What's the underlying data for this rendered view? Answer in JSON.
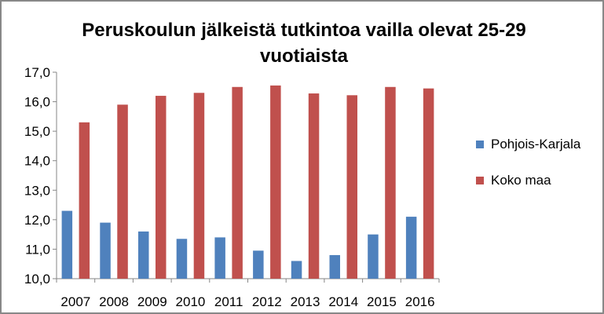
{
  "chart_data": {
    "type": "bar",
    "title": "Peruskoulun jälkeistä tutkintoa vailla olevat 25-29 vuotiaista",
    "categories": [
      "2007",
      "2008",
      "2009",
      "2010",
      "2011",
      "2012",
      "2013",
      "2014",
      "2015",
      "2016"
    ],
    "series": [
      {
        "name": "Pohjois-Karjala",
        "color": "#4f81bd",
        "values": [
          12.3,
          11.9,
          11.6,
          11.35,
          11.4,
          10.95,
          10.6,
          10.8,
          11.5,
          12.1
        ]
      },
      {
        "name": "Koko maa",
        "color": "#c0504d",
        "values": [
          15.3,
          15.9,
          16.2,
          16.3,
          16.5,
          16.55,
          16.28,
          16.22,
          16.5,
          16.45
        ]
      }
    ],
    "ylim": [
      10,
      17
    ],
    "yticks": [
      "10,0",
      "11,0",
      "12,0",
      "13,0",
      "14,0",
      "15,0",
      "16,0",
      "17,0"
    ],
    "legend_position": "right",
    "grid": false
  }
}
